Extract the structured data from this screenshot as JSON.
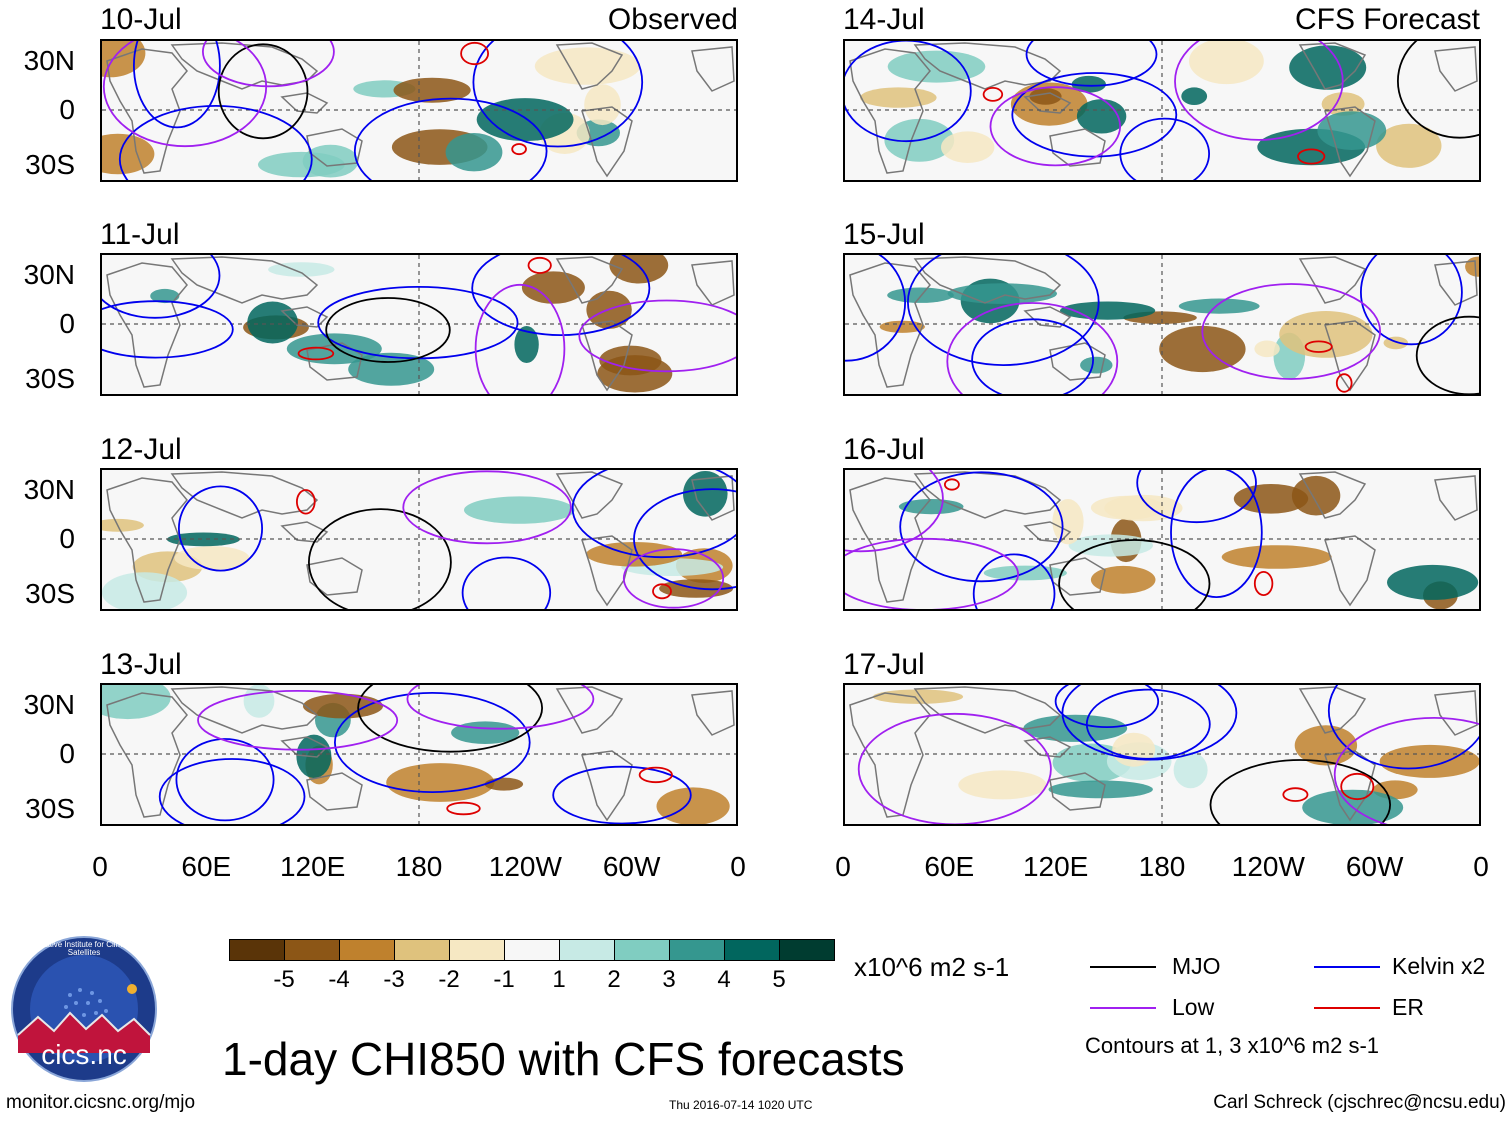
{
  "observed_label": "Observed",
  "forecast_label": "CFS Forecast",
  "left_dates": [
    "10-Jul",
    "11-Jul",
    "12-Jul",
    "13-Jul"
  ],
  "right_dates": [
    "14-Jul",
    "15-Jul",
    "16-Jul",
    "17-Jul"
  ],
  "lat_labels": [
    "30N",
    "0",
    "30S"
  ],
  "lon_labels": [
    "0",
    "60E",
    "120E",
    "180",
    "120W",
    "60W",
    "0"
  ],
  "colorbar": {
    "ticks": [
      "-5",
      "-4",
      "-3",
      "-2",
      "-1",
      "1",
      "2",
      "3",
      "4",
      "5"
    ],
    "colors": [
      "#5a3408",
      "#8c5616",
      "#bf812d",
      "#dfc27d",
      "#f6e8c3",
      "#f7f7f7",
      "#c7eae5",
      "#80cdc1",
      "#35978f",
      "#01665e",
      "#003c30"
    ],
    "units": "x10^6 m2 s-1"
  },
  "legend": {
    "mjo": "MJO",
    "kelvin": "Kelvin x2",
    "low": "Low",
    "er": "ER",
    "contours_note": "Contours at 1, 3 x10^6 m2 s-1",
    "colors": {
      "mjo": "#000000",
      "kelvin": "#0000ee",
      "low": "#a020f0",
      "er": "#dd0000"
    }
  },
  "title": "1-day CHI850 with CFS forecasts",
  "logo_text": "cics.nc",
  "logo_ring_text": "Cooperative Institute for Climate and Satellites",
  "footer": {
    "url": "monitor.cicsnc.org/mjo",
    "timestamp": "Thu 2016-07-14 1020 UTC",
    "author": "Carl Schreck (cjschrec@ncsu.edu)"
  }
}
